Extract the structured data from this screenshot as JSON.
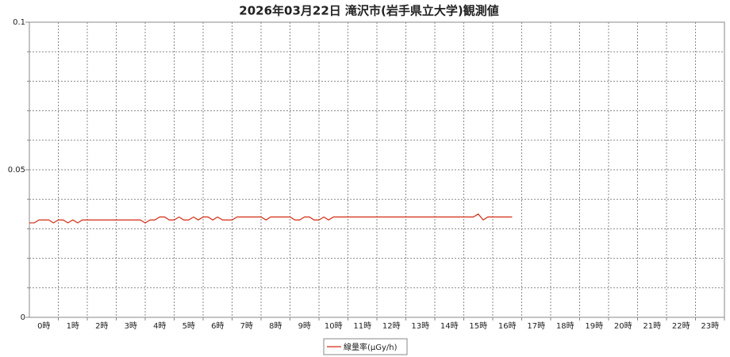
{
  "chart_data": {
    "type": "line",
    "title": "2026年03月22日 滝沢市(岩手県立大学)観測値",
    "categories": [
      "0時",
      "1時",
      "2時",
      "3時",
      "4時",
      "5時",
      "6時",
      "7時",
      "8時",
      "9時",
      "10時",
      "11時",
      "12時",
      "13時",
      "14時",
      "15時",
      "16時",
      "17時",
      "18時",
      "19時",
      "20時",
      "21時",
      "22時",
      "23時"
    ],
    "xlim": [
      0,
      24
    ],
    "ylim": [
      0,
      0.1
    ],
    "yticks": [
      0,
      0.05,
      0.1
    ],
    "minor_yticks": [
      0.01,
      0.02,
      0.03,
      0.04,
      0.06,
      0.07,
      0.08,
      0.09
    ],
    "grid": true,
    "series": [
      {
        "name": "線量率(µGy/h)",
        "color": "#d42a10",
        "x": [
          0,
          0.17,
          0.33,
          0.5,
          0.67,
          0.83,
          1,
          1.17,
          1.33,
          1.5,
          1.67,
          1.83,
          2,
          2.17,
          2.33,
          2.5,
          2.67,
          2.83,
          3,
          3.17,
          3.33,
          3.5,
          3.67,
          3.83,
          4,
          4.17,
          4.33,
          4.5,
          4.67,
          4.83,
          5,
          5.17,
          5.33,
          5.5,
          5.67,
          5.83,
          6,
          6.17,
          6.33,
          6.5,
          6.67,
          6.83,
          7,
          7.17,
          7.33,
          7.5,
          7.67,
          7.83,
          8,
          8.17,
          8.33,
          8.5,
          8.67,
          8.83,
          9,
          9.17,
          9.33,
          9.5,
          9.67,
          9.83,
          10,
          10.17,
          10.33,
          10.5,
          10.67,
          10.83,
          11,
          11.17,
          11.33,
          11.5,
          11.67,
          11.83,
          12,
          12.17,
          12.33,
          12.5,
          12.67,
          12.83,
          13,
          13.17,
          13.33,
          13.5,
          13.67,
          13.83,
          14,
          14.17,
          14.33,
          14.5,
          14.67,
          14.83,
          15,
          15.17,
          15.33,
          15.5,
          15.67,
          15.83,
          16,
          16.17,
          16.33,
          16.5,
          16.67
        ],
        "values": [
          0.032,
          0.032,
          0.033,
          0.033,
          0.033,
          0.032,
          0.033,
          0.033,
          0.032,
          0.033,
          0.032,
          0.033,
          0.033,
          0.033,
          0.033,
          0.033,
          0.033,
          0.033,
          0.033,
          0.033,
          0.033,
          0.033,
          0.033,
          0.033,
          0.032,
          0.033,
          0.033,
          0.034,
          0.034,
          0.033,
          0.033,
          0.034,
          0.033,
          0.033,
          0.034,
          0.033,
          0.034,
          0.034,
          0.033,
          0.034,
          0.033,
          0.033,
          0.033,
          0.034,
          0.034,
          0.034,
          0.034,
          0.034,
          0.034,
          0.033,
          0.034,
          0.034,
          0.034,
          0.034,
          0.034,
          0.033,
          0.033,
          0.034,
          0.034,
          0.033,
          0.033,
          0.034,
          0.033,
          0.034,
          0.034,
          0.034,
          0.034,
          0.034,
          0.034,
          0.034,
          0.034,
          0.034,
          0.034,
          0.034,
          0.034,
          0.034,
          0.034,
          0.034,
          0.034,
          0.034,
          0.034,
          0.034,
          0.034,
          0.034,
          0.034,
          0.034,
          0.034,
          0.034,
          0.034,
          0.034,
          0.034,
          0.034,
          0.034,
          0.035,
          0.033,
          0.034,
          0.034,
          0.034,
          0.034,
          0.034,
          0.034
        ]
      }
    ]
  }
}
